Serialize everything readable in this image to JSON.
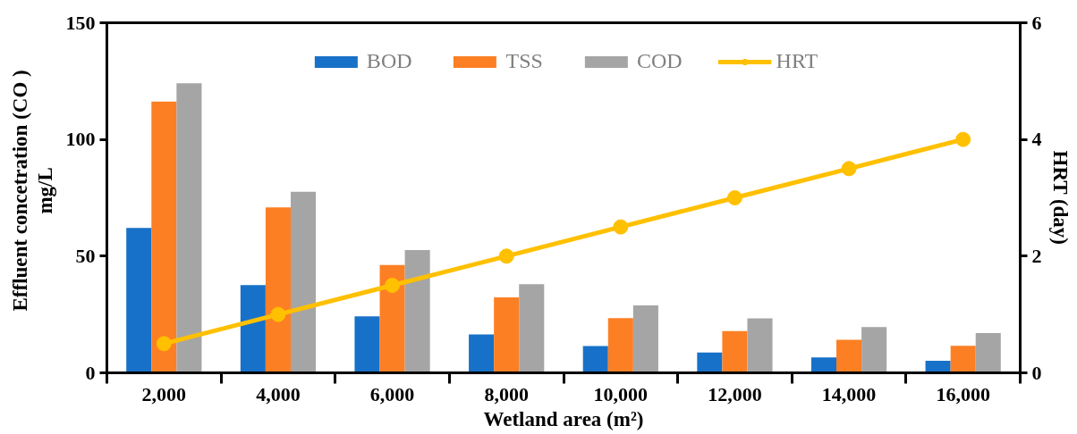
{
  "chart_data": {
    "type": "bar",
    "xlabel": "Wetland area (m²)",
    "ylabel": "Effluent concetration (CO ) mg/L",
    "y2label": "HRT (day)",
    "categories": [
      "2,000",
      "4,000",
      "6,000",
      "8,000",
      "10,000",
      "12,000",
      "14,000",
      "16,000"
    ],
    "series": [
      {
        "name": "BOD",
        "color": "#1771c8",
        "values": [
          62.1,
          37.6,
          24.2,
          16.5,
          11.5,
          8.7,
          6.6,
          5.2
        ]
      },
      {
        "name": "TSS",
        "color": "#fd7f23",
        "values": [
          116.2,
          70.9,
          46.2,
          32.3,
          23.4,
          17.9,
          14.2,
          11.6
        ]
      },
      {
        "name": "COD",
        "color": "#a5a5a5",
        "values": [
          124.1,
          77.6,
          52.6,
          38.0,
          28.9,
          23.3,
          19.6,
          17.0
        ]
      },
      {
        "name": "HRT",
        "type": "line",
        "axis": "y2",
        "color": "#ffc000",
        "marker": "circle",
        "values": [
          0.5,
          1,
          1.5,
          2,
          2.5,
          3,
          3.5,
          4
        ]
      }
    ],
    "ylim": [
      0,
      150
    ],
    "yticks": [
      0,
      50,
      100,
      150
    ],
    "y2lim": [
      0,
      6
    ],
    "y2ticks": [
      0,
      2,
      4,
      6
    ],
    "grid": false,
    "legend": "top"
  }
}
